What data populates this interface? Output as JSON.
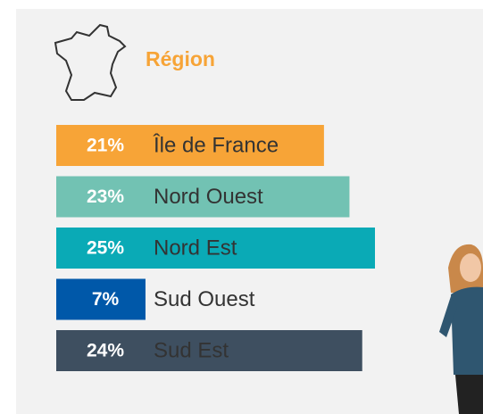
{
  "chart_data": {
    "type": "bar",
    "orientation": "horizontal",
    "title": "Région",
    "categories": [
      "Île de France",
      "Nord Ouest",
      "Nord Est",
      "Sud Ouest",
      "Sud Est"
    ],
    "values": [
      21,
      23,
      25,
      7,
      24
    ],
    "value_labels": [
      "21%",
      "23%",
      "25%",
      "7%",
      "24%"
    ],
    "colors": [
      "#f7a437",
      "#72c2b3",
      "#0aaab6",
      "#0058a9",
      "#3e4f60"
    ],
    "xlim": [
      0,
      25
    ]
  }
}
